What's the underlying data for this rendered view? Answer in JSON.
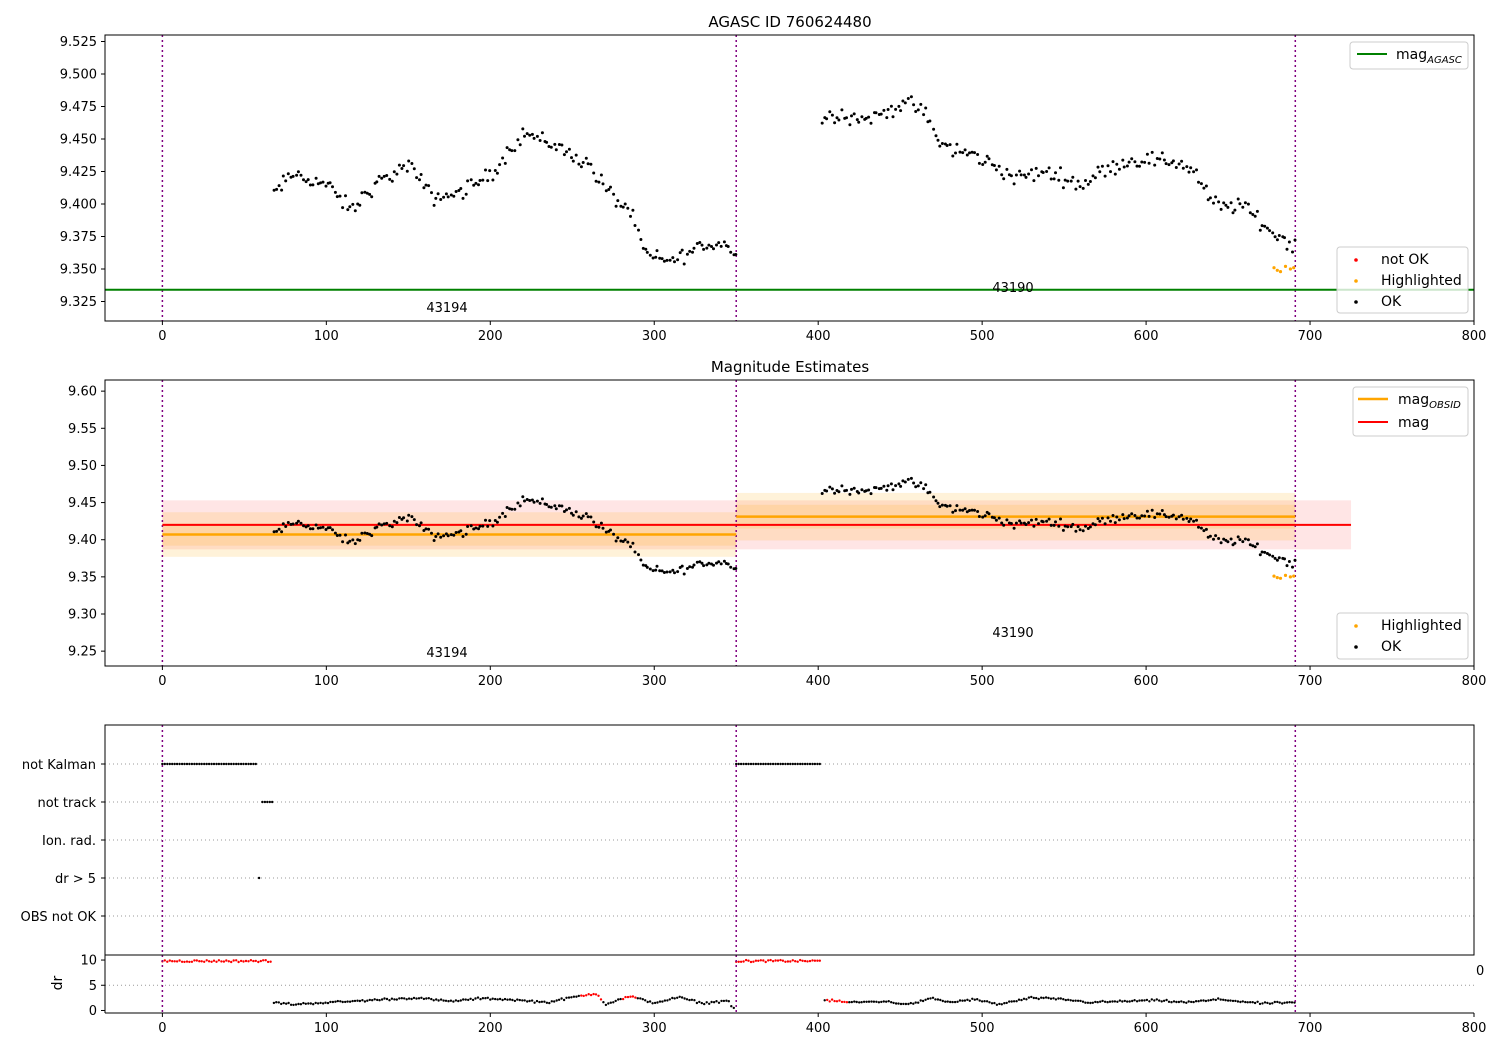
{
  "figure": {
    "panels": [
      {
        "id": "agasc",
        "title": "AGASC ID 760624480",
        "xlim": [
          -35,
          800
        ],
        "ylim": [
          9.31,
          9.53
        ],
        "yticks": [
          9.325,
          9.35,
          9.375,
          9.4,
          9.425,
          9.45,
          9.475,
          9.5,
          9.525
        ],
        "ytick_labels": [
          "9.325",
          "9.350",
          "9.375",
          "9.400",
          "9.425",
          "9.450",
          "9.475",
          "9.500",
          "9.525"
        ],
        "obsids": [
          {
            "label": "43194",
            "x": 175,
            "y": 9.318
          },
          {
            "label": "43190",
            "x": 520,
            "y": 9.333
          }
        ],
        "legend_top": [
          {
            "label": "mag",
            "sub": "AGASC",
            "color": "#008000",
            "kind": "line"
          }
        ],
        "legend_bottom": [
          {
            "label": "not OK",
            "color": "#ff0000",
            "kind": "dot"
          },
          {
            "label": "Highlighted",
            "color": "#ffa500",
            "kind": "dot"
          },
          {
            "label": "OK",
            "color": "#000000",
            "kind": "dot"
          }
        ]
      },
      {
        "id": "estimates",
        "title": "Magnitude Estimates",
        "xlim": [
          -35,
          800
        ],
        "ylim": [
          9.23,
          9.615
        ],
        "yticks": [
          9.25,
          9.3,
          9.35,
          9.4,
          9.45,
          9.5,
          9.55,
          9.6
        ],
        "ytick_labels": [
          "9.25",
          "9.30",
          "9.35",
          "9.40",
          "9.45",
          "9.50",
          "9.55",
          "9.60"
        ],
        "obsids": [
          {
            "label": "43194",
            "x": 175,
            "y": 9.242
          },
          {
            "label": "43190",
            "x": 520,
            "y": 9.27
          }
        ],
        "legend_top": [
          {
            "label": "mag",
            "sub": "OBSID",
            "color": "#ffa500",
            "kind": "line"
          },
          {
            "label": "mag",
            "sub": "",
            "color": "#ff0000",
            "kind": "line"
          }
        ],
        "legend_bottom": [
          {
            "label": "Highlighted",
            "color": "#ffa500",
            "kind": "dot"
          },
          {
            "label": "OK",
            "color": "#000000",
            "kind": "dot"
          }
        ]
      },
      {
        "id": "flags",
        "categories": [
          "not Kalman",
          "not track",
          "Ion. rad.",
          "dr > 5",
          "OBS not OK"
        ],
        "xlim": [
          -35,
          800
        ]
      },
      {
        "id": "dr",
        "ylabel": "dr",
        "ylim": [
          -0.5,
          11
        ],
        "yticks": [
          0,
          5,
          10
        ],
        "ytick_labels": [
          "0",
          "5",
          "10"
        ],
        "extra_label": "0"
      }
    ],
    "xticks": [
      0,
      100,
      200,
      300,
      400,
      500,
      600,
      700,
      800
    ],
    "xtick_labels": [
      "0",
      "100",
      "200",
      "300",
      "400",
      "500",
      "600",
      "700",
      "800"
    ],
    "obs_boundaries": [
      0,
      350,
      691
    ],
    "colors": {
      "ok": "#000000",
      "not_ok": "#ff0000",
      "highlighted": "#ffa500",
      "mag_agasc": "#008000",
      "mag_obsid": "#ffa500",
      "mag": "#ff0000",
      "boundary": "#800080"
    }
  },
  "chart_data": [
    {
      "type": "scatter",
      "title": "AGASC ID 760624480",
      "xlabel": "",
      "ylabel": "",
      "xlim": [
        -35,
        800
      ],
      "ylim": [
        9.31,
        9.53
      ],
      "hlines": [
        {
          "name": "mag_AGASC",
          "y": 9.334
        }
      ],
      "vlines": [
        0,
        350,
        691
      ],
      "series": [
        {
          "name": "OK",
          "color": "#000000",
          "x_start": 68,
          "x_end": 691,
          "x_step": 1.5,
          "trend_x": [
            68,
            80,
            100,
            115,
            130,
            150,
            165,
            180,
            200,
            220,
            240,
            260,
            275,
            285,
            295,
            310,
            330,
            345,
            348,
            350,
            400,
            410,
            430,
            455,
            465,
            475,
            500,
            520,
            540,
            560,
            580,
            600,
            620,
            630,
            640,
            660,
            675,
            691
          ],
          "trend_y": [
            9.408,
            9.423,
            9.415,
            9.395,
            9.415,
            9.43,
            9.405,
            9.408,
            9.422,
            9.455,
            9.445,
            9.43,
            9.405,
            9.395,
            9.36,
            9.356,
            9.368,
            9.37,
            9.362,
            9.36,
            9.462,
            9.47,
            9.465,
            9.478,
            9.47,
            9.445,
            9.435,
            9.42,
            9.425,
            9.415,
            9.43,
            9.435,
            9.432,
            9.425,
            9.4,
            9.398,
            9.38,
            9.368
          ],
          "noise": 0.009,
          "excluded_x_ranges": [
            [
              350,
              402
            ]
          ]
        },
        {
          "name": "Highlighted",
          "color": "#ffa500",
          "x": [
            678,
            680,
            682,
            685,
            688,
            690
          ],
          "y": [
            9.351,
            9.349,
            9.348,
            9.352,
            9.35,
            9.351
          ]
        }
      ]
    },
    {
      "type": "scatter",
      "title": "Magnitude Estimates",
      "xlim": [
        -35,
        800
      ],
      "ylim": [
        9.23,
        9.615
      ],
      "lines": [
        {
          "name": "mag_OBSID",
          "segments": [
            {
              "x": [
                0,
                350
              ],
              "y": 9.407,
              "band_sigma": 0.03
            },
            {
              "x": [
                350,
                691
              ],
              "y": 9.431,
              "band_sigma": 0.032
            }
          ]
        },
        {
          "name": "mag",
          "x": [
            0,
            725
          ],
          "y": 9.42,
          "band_sigma": 0.033
        }
      ],
      "vlines": [
        0,
        350,
        691
      ],
      "series_note": "same OK and Highlighted points as panel 1"
    },
    {
      "type": "scatter",
      "categories": [
        "not Kalman",
        "not track",
        "Ion. rad.",
        "dr > 5",
        "OBS not OK"
      ],
      "flags": [
        {
          "category": "not Kalman",
          "x_ranges": [
            [
              0,
              58
            ],
            [
              350,
              402
            ]
          ]
        },
        {
          "category": "not track",
          "x_ranges": [
            [
              61,
              67
            ]
          ]
        },
        {
          "category": "Ion. rad.",
          "x_ranges": []
        },
        {
          "category": "dr > 5",
          "x_ranges": [
            [
              59,
              60
            ]
          ]
        },
        {
          "category": "OBS not OK",
          "x_ranges": []
        }
      ]
    },
    {
      "type": "scatter",
      "ylabel": "dr",
      "ylim": [
        -0.5,
        11
      ],
      "series": [
        {
          "name": "dr > 5 (red)",
          "x_ranges": [
            [
              0,
              67
            ],
            [
              350,
              402
            ]
          ],
          "y": 9.8
        },
        {
          "name": "dr OK",
          "trend_x": [
            68,
            80,
            95,
            115,
            135,
            155,
            175,
            195,
            210,
            235,
            250,
            265,
            270,
            285,
            300,
            315,
            330,
            345,
            348,
            405,
            420,
            440,
            455,
            470,
            480,
            495,
            510,
            530,
            550,
            565,
            585,
            605,
            625,
            645,
            670,
            691
          ],
          "trend_y": [
            1.6,
            1.2,
            1.5,
            1.8,
            2.2,
            2.5,
            1.8,
            2.4,
            2.2,
            1.6,
            2.6,
            3.4,
            1.2,
            2.8,
            1.5,
            2.6,
            1.4,
            2.0,
            0.5,
            2.0,
            1.6,
            1.8,
            1.2,
            2.4,
            1.6,
            2.2,
            1.2,
            2.5,
            2.2,
            1.6,
            1.8,
            2.0,
            1.6,
            2.2,
            1.4,
            1.6
          ]
        }
      ]
    }
  ]
}
